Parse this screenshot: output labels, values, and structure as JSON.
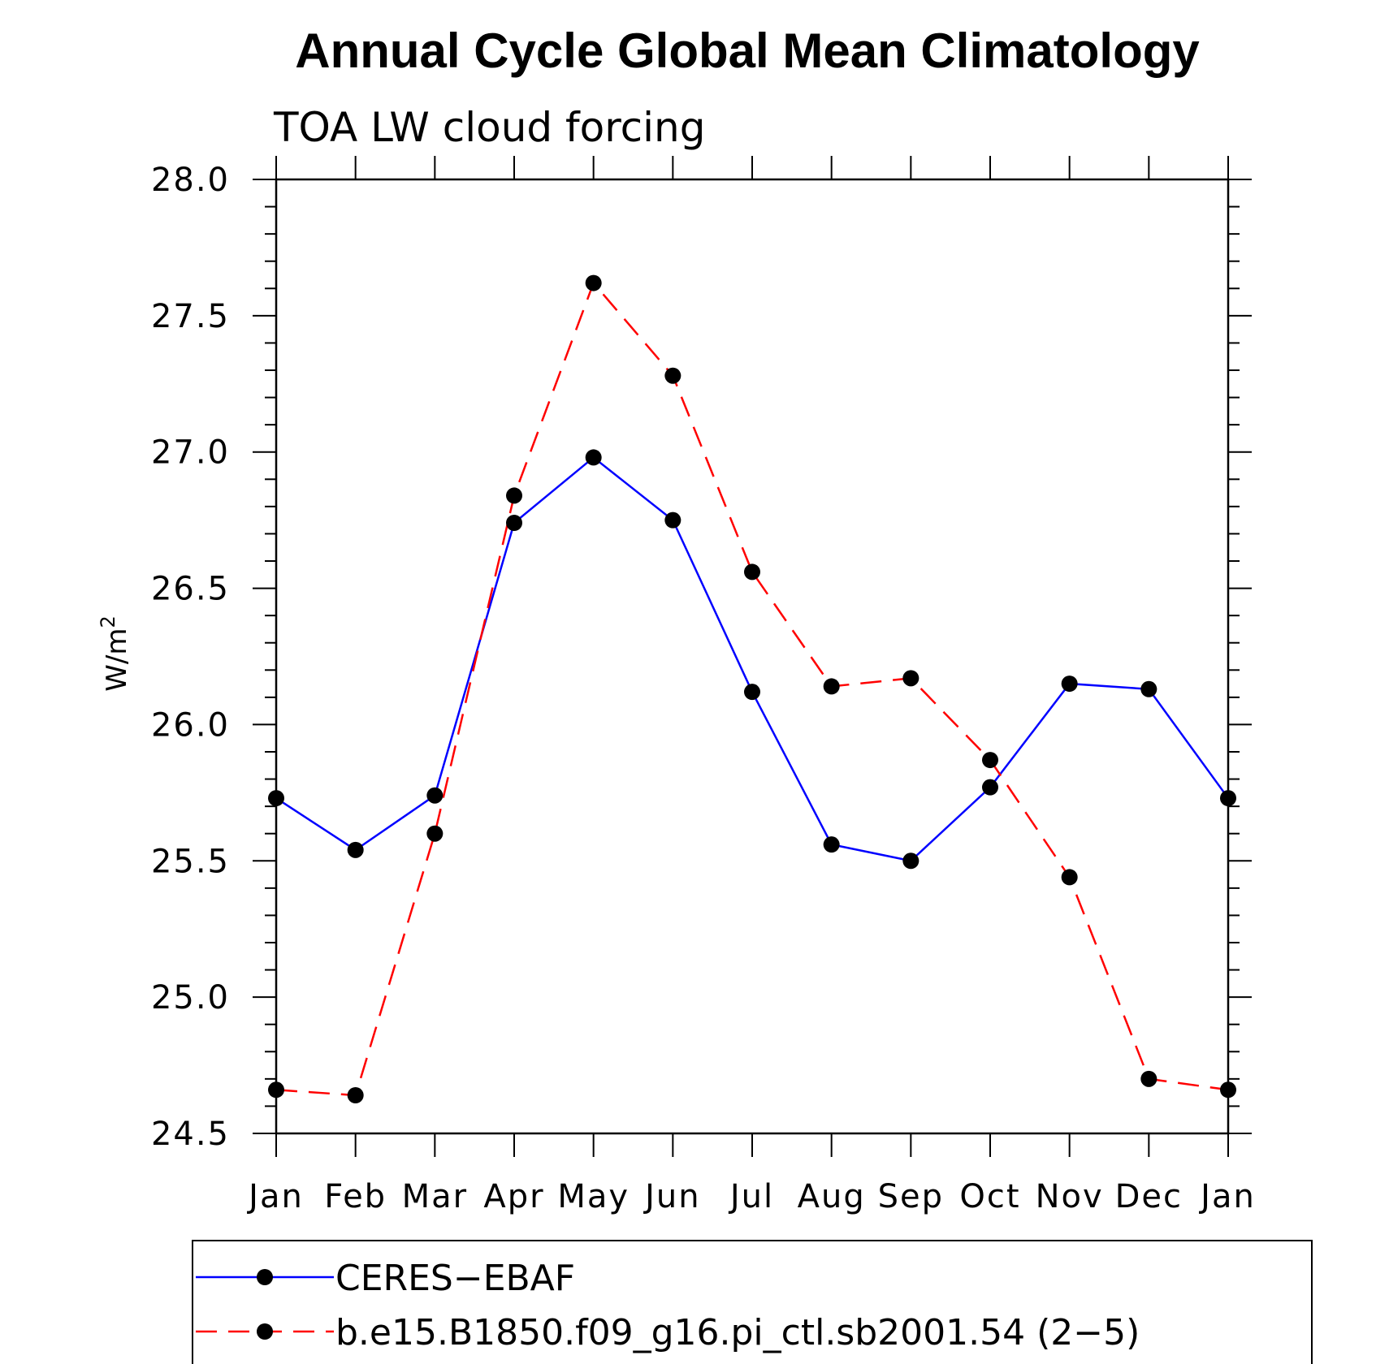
{
  "chart_data": {
    "type": "line",
    "title": "Annual Cycle Global Mean Climatology",
    "subtitle": "TOA LW cloud forcing",
    "xlabel": "",
    "ylabel": "W/m",
    "ylabel_superscript": "2",
    "categories": [
      "Jan",
      "Feb",
      "Mar",
      "Apr",
      "May",
      "Jun",
      "Jul",
      "Aug",
      "Sep",
      "Oct",
      "Nov",
      "Dec",
      "Jan"
    ],
    "ylim": [
      24.5,
      28.0
    ],
    "yticks": [
      "24.5",
      "25.0",
      "25.5",
      "26.0",
      "26.5",
      "27.0",
      "27.5",
      "28.0"
    ],
    "grid": false,
    "legend_position": "bottom",
    "series": [
      {
        "name": "CERES−EBAF",
        "color": "#0000ff",
        "line_style": "solid",
        "values": [
          25.73,
          25.54,
          25.74,
          26.74,
          26.98,
          26.75,
          26.12,
          25.56,
          25.5,
          25.77,
          26.15,
          26.13,
          25.73
        ]
      },
      {
        "name": "b.e15.B1850.f09_g16.pi_ctl.sb2001.54 (2−5)",
        "color": "#ff0000",
        "line_style": "dashed",
        "values": [
          24.66,
          24.64,
          25.6,
          26.84,
          27.62,
          27.28,
          26.56,
          26.14,
          26.17,
          25.87,
          25.44,
          24.7,
          24.66
        ]
      }
    ]
  }
}
